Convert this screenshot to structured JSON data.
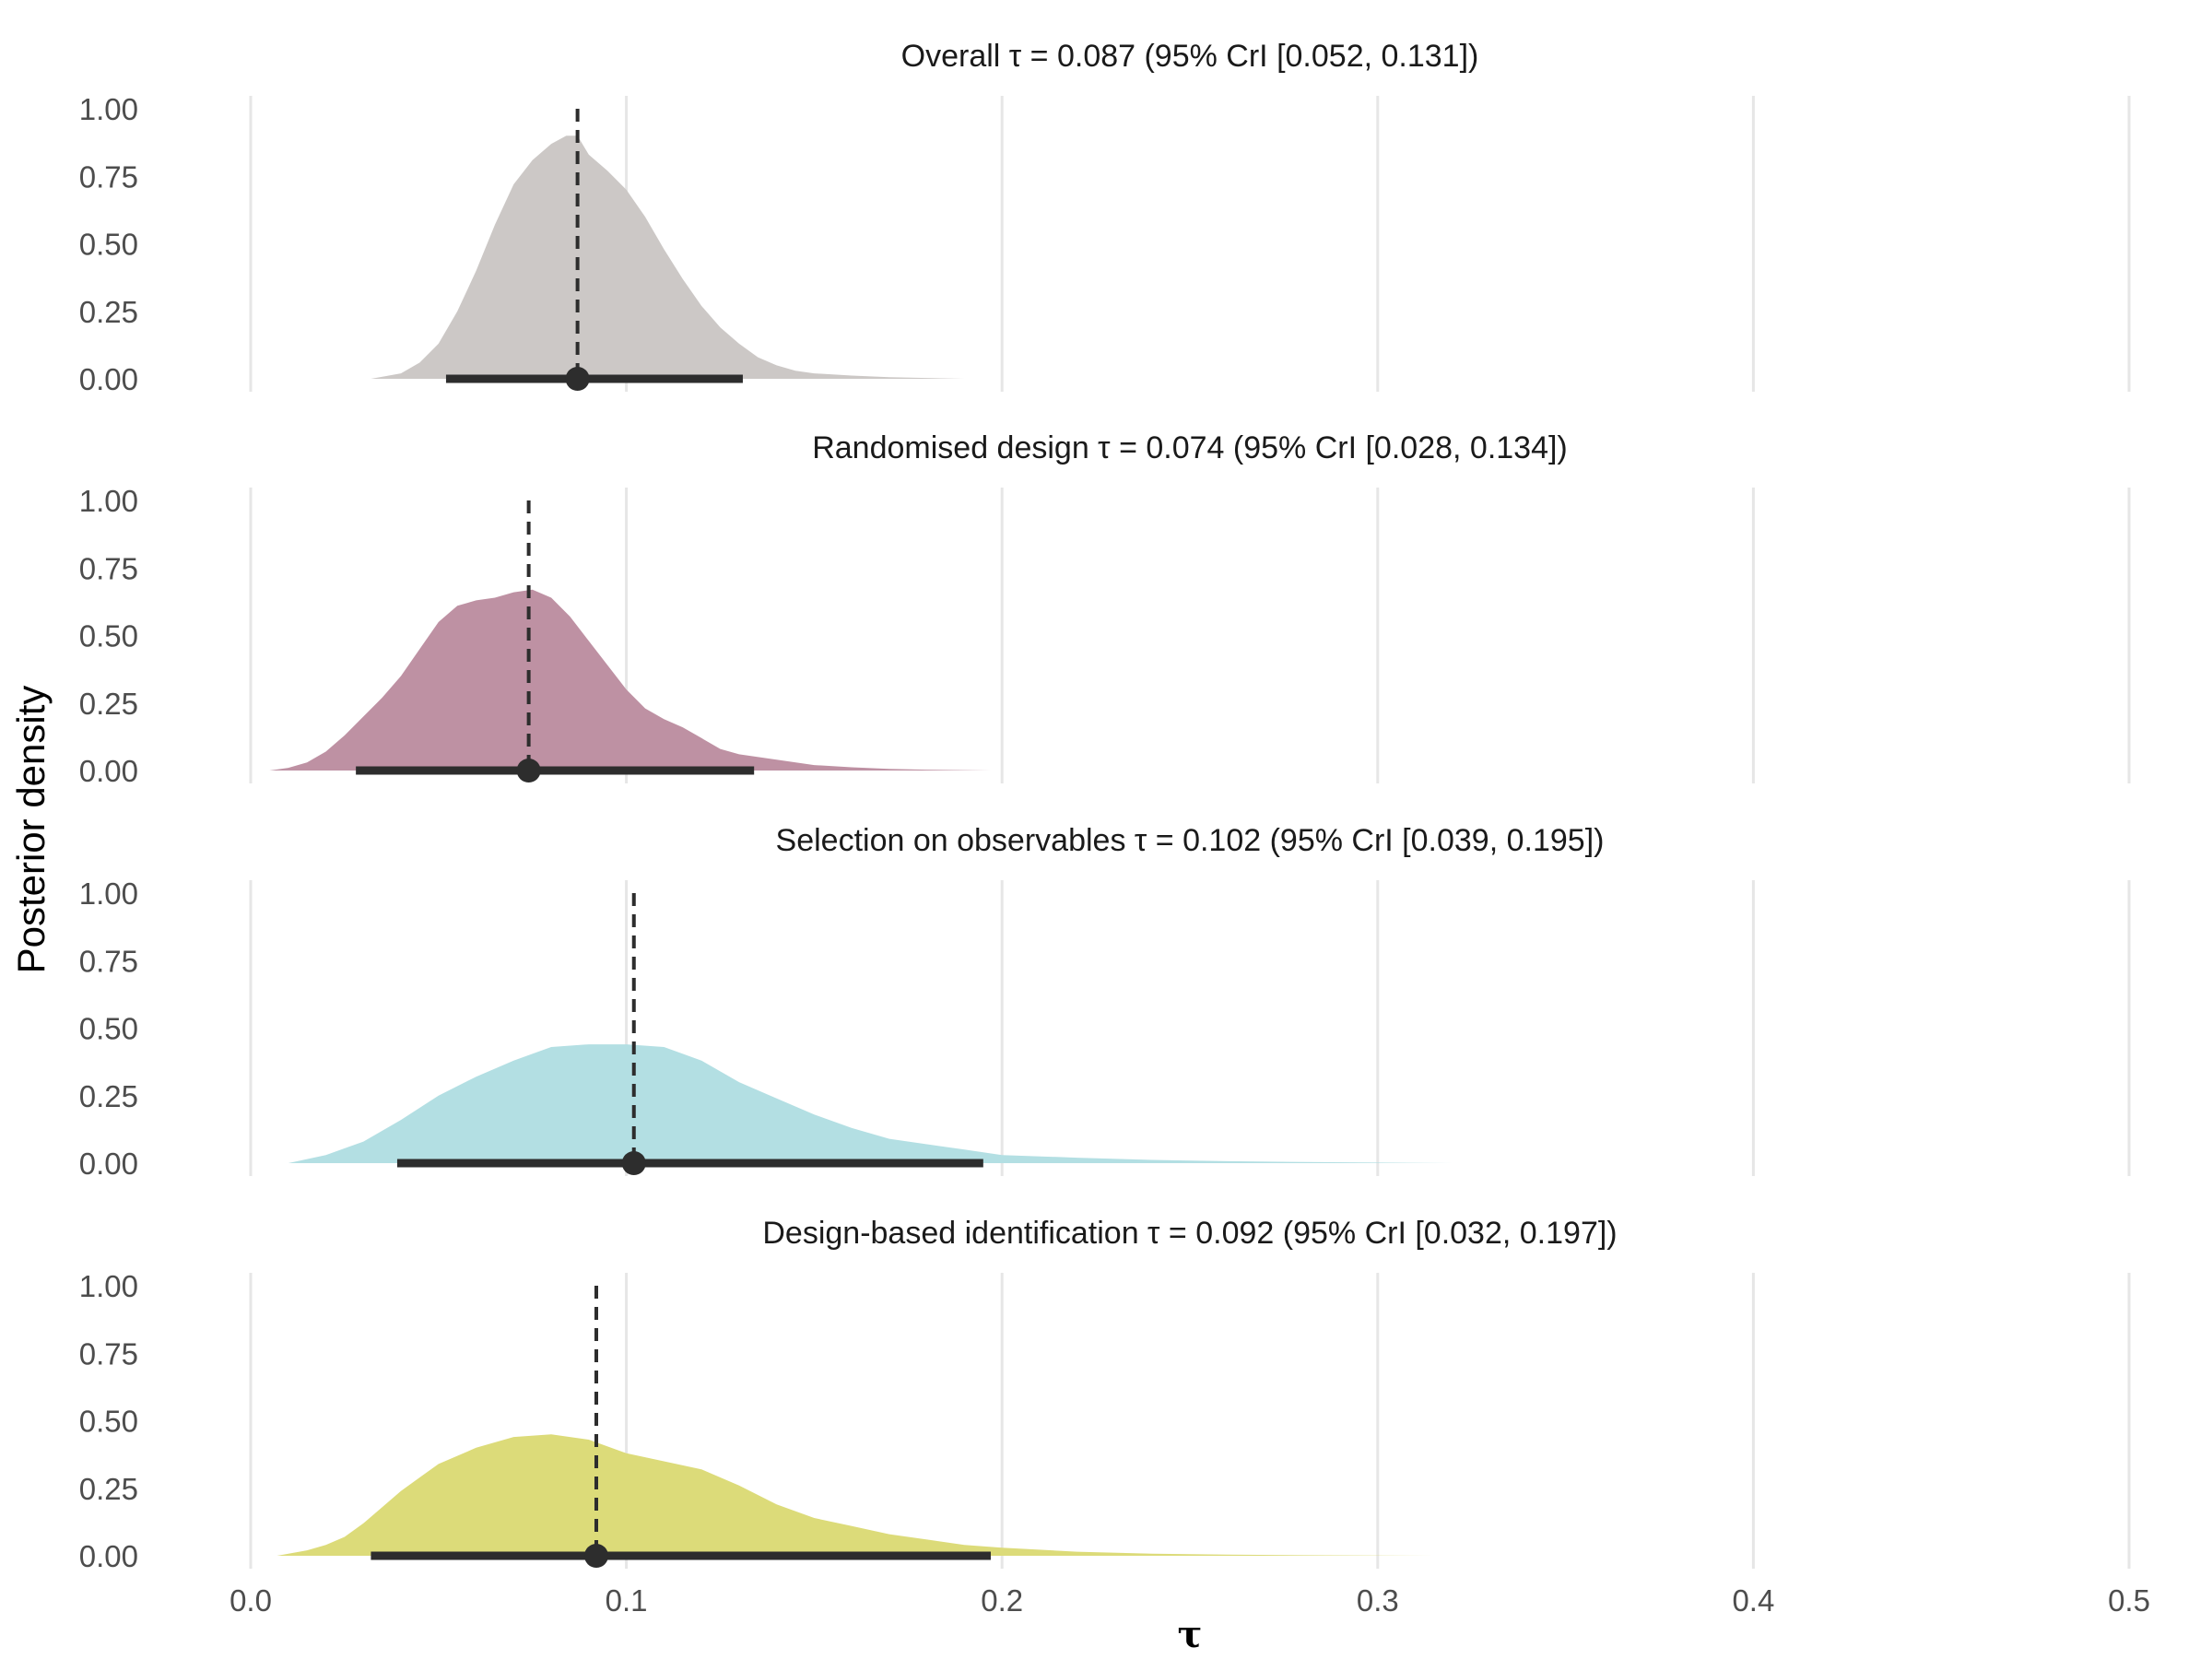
{
  "chart_data": {
    "type": "area",
    "xlabel": "τ",
    "ylabel": "Posterior density",
    "xlim": [
      0,
      0.5
    ],
    "ylim": [
      0,
      1
    ],
    "x_ticks": [
      "0.0",
      "0.1",
      "0.2",
      "0.3",
      "0.4",
      "0.5"
    ],
    "y_ticks": [
      "0.00",
      "0.25",
      "0.50",
      "0.75",
      "1.00"
    ],
    "grid": "vertical",
    "line_color": "#2d2d2d",
    "panels": [
      {
        "title": "Overall τ = 0.087 (95% CrI [0.052, 0.131])",
        "color": "#ccc8c6",
        "median": 0.087,
        "ci": [
          0.052,
          0.131
        ],
        "density": {
          "x": [
            0.032,
            0.04,
            0.045,
            0.05,
            0.055,
            0.06,
            0.065,
            0.07,
            0.075,
            0.08,
            0.084,
            0.087,
            0.09,
            0.095,
            0.1,
            0.105,
            0.11,
            0.115,
            0.12,
            0.125,
            0.13,
            0.135,
            0.14,
            0.145,
            0.15,
            0.16,
            0.17,
            0.18,
            0.19
          ],
          "y": [
            0.0,
            0.02,
            0.06,
            0.13,
            0.25,
            0.4,
            0.57,
            0.72,
            0.81,
            0.87,
            0.9,
            0.9,
            0.83,
            0.77,
            0.7,
            0.6,
            0.48,
            0.37,
            0.27,
            0.19,
            0.13,
            0.08,
            0.05,
            0.03,
            0.02,
            0.012,
            0.006,
            0.003,
            0.0
          ]
        }
      },
      {
        "title": "Randomised design τ = 0.074 (95% CrI [0.028, 0.134])",
        "color": "#be91a3",
        "median": 0.074,
        "ci": [
          0.028,
          0.134
        ],
        "density": {
          "x": [
            0.005,
            0.01,
            0.015,
            0.02,
            0.025,
            0.03,
            0.035,
            0.04,
            0.045,
            0.05,
            0.055,
            0.06,
            0.065,
            0.07,
            0.075,
            0.08,
            0.085,
            0.09,
            0.095,
            0.1,
            0.105,
            0.11,
            0.115,
            0.12,
            0.125,
            0.13,
            0.14,
            0.15,
            0.16,
            0.17,
            0.18,
            0.197
          ],
          "y": [
            0.0,
            0.01,
            0.03,
            0.07,
            0.13,
            0.2,
            0.27,
            0.35,
            0.45,
            0.55,
            0.61,
            0.63,
            0.64,
            0.66,
            0.67,
            0.64,
            0.57,
            0.48,
            0.39,
            0.3,
            0.23,
            0.19,
            0.16,
            0.12,
            0.08,
            0.06,
            0.04,
            0.02,
            0.012,
            0.006,
            0.003,
            0.0
          ]
        }
      },
      {
        "title": "Selection on observables τ = 0.102 (95% CrI [0.039, 0.195])",
        "color": "#b3dfe3",
        "median": 0.102,
        "ci": [
          0.039,
          0.195
        ],
        "density": {
          "x": [
            0.01,
            0.02,
            0.03,
            0.04,
            0.05,
            0.06,
            0.07,
            0.08,
            0.09,
            0.1,
            0.11,
            0.12,
            0.13,
            0.14,
            0.15,
            0.16,
            0.17,
            0.18,
            0.19,
            0.2,
            0.22,
            0.24,
            0.26,
            0.28,
            0.3,
            0.32
          ],
          "y": [
            0.0,
            0.03,
            0.08,
            0.16,
            0.25,
            0.32,
            0.38,
            0.43,
            0.44,
            0.44,
            0.43,
            0.38,
            0.3,
            0.24,
            0.18,
            0.13,
            0.09,
            0.07,
            0.05,
            0.03,
            0.02,
            0.012,
            0.007,
            0.004,
            0.002,
            0.0
          ]
        }
      },
      {
        "title": "Design-based identification τ = 0.092 (95% CrI [0.032, 0.197])",
        "color": "#dcdb79",
        "median": 0.092,
        "ci": [
          0.032,
          0.197
        ],
        "density": {
          "x": [
            0.007,
            0.015,
            0.02,
            0.025,
            0.03,
            0.035,
            0.04,
            0.045,
            0.05,
            0.06,
            0.07,
            0.08,
            0.09,
            0.1,
            0.11,
            0.12,
            0.13,
            0.14,
            0.15,
            0.16,
            0.17,
            0.18,
            0.19,
            0.2,
            0.22,
            0.24,
            0.26,
            0.28,
            0.3,
            0.315
          ],
          "y": [
            0.0,
            0.02,
            0.04,
            0.07,
            0.12,
            0.18,
            0.24,
            0.29,
            0.34,
            0.4,
            0.44,
            0.45,
            0.43,
            0.38,
            0.35,
            0.32,
            0.26,
            0.19,
            0.14,
            0.11,
            0.08,
            0.06,
            0.04,
            0.03,
            0.015,
            0.008,
            0.004,
            0.002,
            0.001,
            0.0
          ]
        }
      }
    ]
  }
}
